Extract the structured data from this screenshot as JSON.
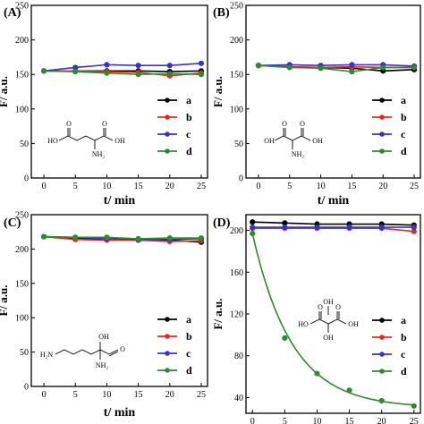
{
  "figure": {
    "panels": [
      {
        "panel_label": "(A)",
        "ylabel": "F/ a.u.",
        "xlabel": "t/ min",
        "x_ticks": [
          "0",
          "5",
          "10",
          "15",
          "20",
          "25"
        ],
        "y_ticks": [
          "0",
          "50",
          "100",
          "150",
          "200",
          "250"
        ],
        "legend_labels": [
          "a",
          "b",
          "c",
          "d"
        ],
        "molecule": {
          "labels": [
            "HO",
            "O",
            "O",
            "OH",
            "NH₂"
          ]
        }
      },
      {
        "panel_label": "(B)",
        "ylabel": "F/ a.u.",
        "xlabel": "t/ min",
        "x_ticks": [
          "0",
          "5",
          "10",
          "15",
          "20",
          "25"
        ],
        "y_ticks": [
          "0",
          "50",
          "100",
          "150",
          "200",
          "250"
        ],
        "legend_labels": [
          "a",
          "b",
          "c",
          "d"
        ],
        "molecule": {
          "labels": [
            "O",
            "O",
            "OH",
            "OH",
            "NH₂"
          ]
        }
      },
      {
        "panel_label": "(C)",
        "ylabel": "F/ a.u.",
        "xlabel": "t/ min",
        "x_ticks": [
          "0",
          "5",
          "10",
          "15",
          "20",
          "25"
        ],
        "y_ticks": [
          "0",
          "50",
          "100",
          "150",
          "200",
          "250"
        ],
        "legend_labels": [
          "a",
          "b",
          "c",
          "d"
        ],
        "molecule": {
          "labels": [
            "H₂N",
            "OH",
            "O",
            "NH₂"
          ]
        }
      },
      {
        "panel_label": "(D)",
        "ylabel": "F/ a.u.",
        "xlabel": "t/min",
        "x_ticks": [
          "0",
          "5",
          "10",
          "15",
          "20",
          "25"
        ],
        "y_ticks": [
          "40",
          "80",
          "120",
          "160",
          "200"
        ],
        "legend_labels": [
          "a",
          "b",
          "c",
          "d"
        ],
        "molecule": {
          "labels": [
            "OH",
            "O",
            "OH",
            "O",
            "HO",
            "OH"
          ]
        }
      }
    ]
  },
  "chart_data": [
    {
      "type": "line",
      "panel": "(A)",
      "xlabel": "t/ min",
      "ylabel": "F/ a.u.",
      "xlim": [
        -2,
        26
      ],
      "ylim": [
        0,
        250
      ],
      "x": [
        0,
        5,
        10,
        15,
        20,
        25
      ],
      "series": [
        {
          "name": "a",
          "color": "#000000",
          "values": [
            155,
            155,
            155,
            155,
            154,
            155
          ]
        },
        {
          "name": "b",
          "color": "#e8271f",
          "values": [
            155,
            155,
            154,
            153,
            148,
            152
          ]
        },
        {
          "name": "c",
          "color": "#3434c8",
          "values": [
            155,
            160,
            164,
            163,
            163,
            166
          ]
        },
        {
          "name": "d",
          "color": "#2f8a2f",
          "values": [
            155,
            154,
            152,
            150,
            151,
            150
          ]
        }
      ],
      "legend_position": "right"
    },
    {
      "type": "line",
      "panel": "(B)",
      "xlabel": "t/ min",
      "ylabel": "F/ a.u.",
      "xlim": [
        -2,
        26
      ],
      "ylim": [
        0,
        250
      ],
      "x": [
        0,
        5,
        10,
        15,
        20,
        25
      ],
      "series": [
        {
          "name": "a",
          "color": "#000000",
          "values": [
            163,
            161,
            160,
            159,
            155,
            157
          ]
        },
        {
          "name": "b",
          "color": "#e8271f",
          "values": [
            163,
            161,
            160,
            161,
            160,
            160
          ]
        },
        {
          "name": "c",
          "color": "#3434c8",
          "values": [
            163,
            164,
            163,
            164,
            164,
            162
          ]
        },
        {
          "name": "d",
          "color": "#2f8a2f",
          "values": [
            163,
            160,
            159,
            154,
            160,
            160
          ]
        }
      ],
      "legend_position": "right"
    },
    {
      "type": "line",
      "panel": "(C)",
      "xlabel": "t/ min",
      "ylabel": "F/ a.u.",
      "xlim": [
        -2,
        26
      ],
      "ylim": [
        0,
        250
      ],
      "x": [
        0,
        5,
        10,
        15,
        20,
        25
      ],
      "series": [
        {
          "name": "a",
          "color": "#000000",
          "values": [
            218,
            215,
            215,
            213,
            213,
            210
          ]
        },
        {
          "name": "b",
          "color": "#e8271f",
          "values": [
            218,
            214,
            213,
            213,
            211,
            212
          ]
        },
        {
          "name": "c",
          "color": "#3434c8",
          "values": [
            218,
            217,
            215,
            214,
            214,
            215
          ]
        },
        {
          "name": "d",
          "color": "#2f8a2f",
          "values": [
            218,
            217,
            217,
            215,
            216,
            216
          ]
        }
      ],
      "legend_position": "right"
    },
    {
      "type": "line",
      "panel": "(D)",
      "xlabel": "t/min",
      "ylabel": "F/ a.u.",
      "xlim": [
        -1,
        26
      ],
      "ylim": [
        25,
        215
      ],
      "x": [
        0,
        5,
        10,
        15,
        20,
        25
      ],
      "series": [
        {
          "name": "a",
          "color": "#000000",
          "values": [
            208,
            207,
            206,
            206,
            206,
            205
          ]
        },
        {
          "name": "b",
          "color": "#e8271f",
          "values": [
            202,
            202,
            202,
            202,
            202,
            199
          ]
        },
        {
          "name": "c",
          "color": "#3434c8",
          "values": [
            203,
            203,
            203,
            203,
            203,
            203
          ]
        },
        {
          "name": "d",
          "color": "#2f8a2f",
          "values": [
            197,
            97,
            63,
            47,
            37,
            32
          ],
          "fit": "exponential-decay"
        }
      ],
      "legend_position": "right"
    }
  ]
}
